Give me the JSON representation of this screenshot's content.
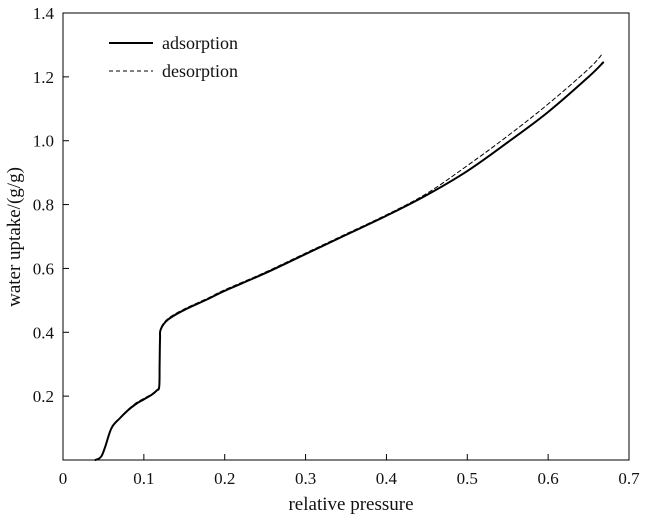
{
  "chart_data": {
    "type": "line",
    "title": "",
    "xlabel": "relative pressure",
    "ylabel": "water uptake/(g/g)",
    "xlim": [
      0,
      0.7
    ],
    "ylim": [
      0,
      1.4
    ],
    "x_ticks": [
      "0",
      "0.1",
      "0.2",
      "0.3",
      "0.4",
      "0.5",
      "0.6",
      "0.7"
    ],
    "y_ticks": [
      "0.2",
      "0.4",
      "0.6",
      "0.8",
      "1.0",
      "1.2",
      "1.4"
    ],
    "grid": false,
    "legend_position": "top-left",
    "series": [
      {
        "name": "adsorption",
        "style": "solid",
        "color": "#000000",
        "points": [
          [
            0.04,
            0.0
          ],
          [
            0.047,
            0.01
          ],
          [
            0.052,
            0.04
          ],
          [
            0.06,
            0.1
          ],
          [
            0.07,
            0.13
          ],
          [
            0.08,
            0.155
          ],
          [
            0.09,
            0.175
          ],
          [
            0.1,
            0.19
          ],
          [
            0.11,
            0.205
          ],
          [
            0.116,
            0.218
          ],
          [
            0.119,
            0.23
          ],
          [
            0.1195,
            0.3
          ],
          [
            0.12,
            0.38
          ],
          [
            0.121,
            0.41
          ],
          [
            0.13,
            0.44
          ],
          [
            0.15,
            0.47
          ],
          [
            0.18,
            0.505
          ],
          [
            0.2,
            0.53
          ],
          [
            0.25,
            0.585
          ],
          [
            0.3,
            0.645
          ],
          [
            0.35,
            0.705
          ],
          [
            0.4,
            0.765
          ],
          [
            0.45,
            0.83
          ],
          [
            0.5,
            0.905
          ],
          [
            0.55,
            0.995
          ],
          [
            0.6,
            1.09
          ],
          [
            0.65,
            1.2
          ],
          [
            0.668,
            1.245
          ]
        ]
      },
      {
        "name": "desorption",
        "style": "dashed",
        "color": "#000000",
        "points": [
          [
            0.04,
            0.0
          ],
          [
            0.047,
            0.01
          ],
          [
            0.052,
            0.04
          ],
          [
            0.06,
            0.1
          ],
          [
            0.07,
            0.13
          ],
          [
            0.08,
            0.157
          ],
          [
            0.09,
            0.178
          ],
          [
            0.1,
            0.193
          ],
          [
            0.11,
            0.207
          ],
          [
            0.116,
            0.22
          ],
          [
            0.119,
            0.232
          ],
          [
            0.1195,
            0.3
          ],
          [
            0.12,
            0.38
          ],
          [
            0.121,
            0.413
          ],
          [
            0.13,
            0.443
          ],
          [
            0.15,
            0.473
          ],
          [
            0.18,
            0.508
          ],
          [
            0.2,
            0.533
          ],
          [
            0.25,
            0.588
          ],
          [
            0.3,
            0.648
          ],
          [
            0.35,
            0.708
          ],
          [
            0.4,
            0.768
          ],
          [
            0.45,
            0.835
          ],
          [
            0.5,
            0.922
          ],
          [
            0.55,
            1.015
          ],
          [
            0.6,
            1.115
          ],
          [
            0.65,
            1.225
          ],
          [
            0.668,
            1.275
          ]
        ]
      }
    ]
  }
}
